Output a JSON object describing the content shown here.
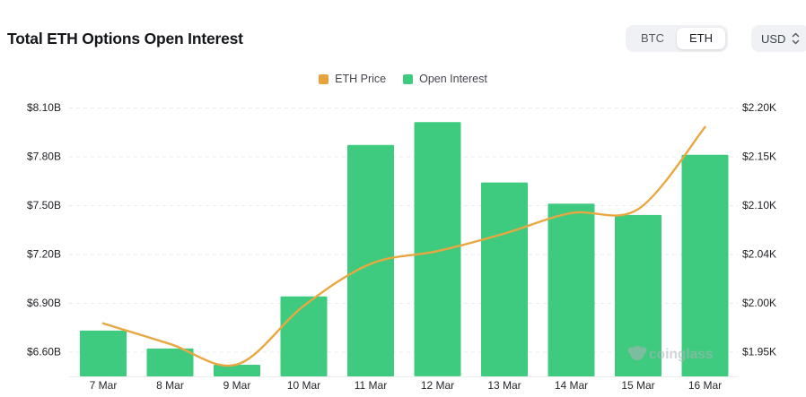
{
  "header": {
    "title": "Total ETH Options Open Interest",
    "coin_toggle": {
      "options": [
        "BTC",
        "ETH"
      ],
      "selected": "ETH"
    },
    "currency_selector": {
      "value": "USD"
    }
  },
  "legend": [
    {
      "label": "ETH Price",
      "color": "#e8a33d"
    },
    {
      "label": "Open Interest",
      "color": "#3ecb80"
    }
  ],
  "watermark": {
    "text": "coinglass"
  },
  "chart_data": {
    "type": "bar",
    "subtype": "bar+line combo, dual axis",
    "title": "Total ETH Options Open Interest",
    "categories": [
      "7 Mar",
      "8 Mar",
      "9 Mar",
      "10 Mar",
      "11 Mar",
      "12 Mar",
      "13 Mar",
      "14 Mar",
      "15 Mar",
      "16 Mar"
    ],
    "series": [
      {
        "name": "Open Interest",
        "type": "bar",
        "axis": "left",
        "unit": "billion USD",
        "color": "#3ecb80",
        "values": [
          6.73,
          6.62,
          6.52,
          6.94,
          7.87,
          8.01,
          7.64,
          7.51,
          7.44,
          7.81
        ]
      },
      {
        "name": "ETH Price",
        "type": "line",
        "axis": "right",
        "unit": "thousand USD",
        "color": "#e9a740",
        "values": [
          1.979,
          1.958,
          1.937,
          1.997,
          2.04,
          2.053,
          2.071,
          2.092,
          2.096,
          2.18
        ]
      }
    ],
    "left_axis": {
      "tick_labels": [
        "$8.10B",
        "$7.80B",
        "$7.50B",
        "$7.20B",
        "$6.90B",
        "$6.60B"
      ],
      "tick_values": [
        8.1,
        7.8,
        7.5,
        7.2,
        6.9,
        6.6
      ],
      "range_shown": [
        6.45,
        8.1
      ]
    },
    "right_axis": {
      "tick_labels": [
        "$2.20K",
        "$2.15K",
        "$2.10K",
        "$2.04K",
        "$2.00K",
        "$1.95K"
      ],
      "tick_values": [
        2.2,
        2.15,
        2.1,
        2.04,
        2.0,
        1.95
      ],
      "range_shown": [
        1.927,
        2.2
      ]
    },
    "grid": "horizontal dashed",
    "legend_position": "top"
  }
}
